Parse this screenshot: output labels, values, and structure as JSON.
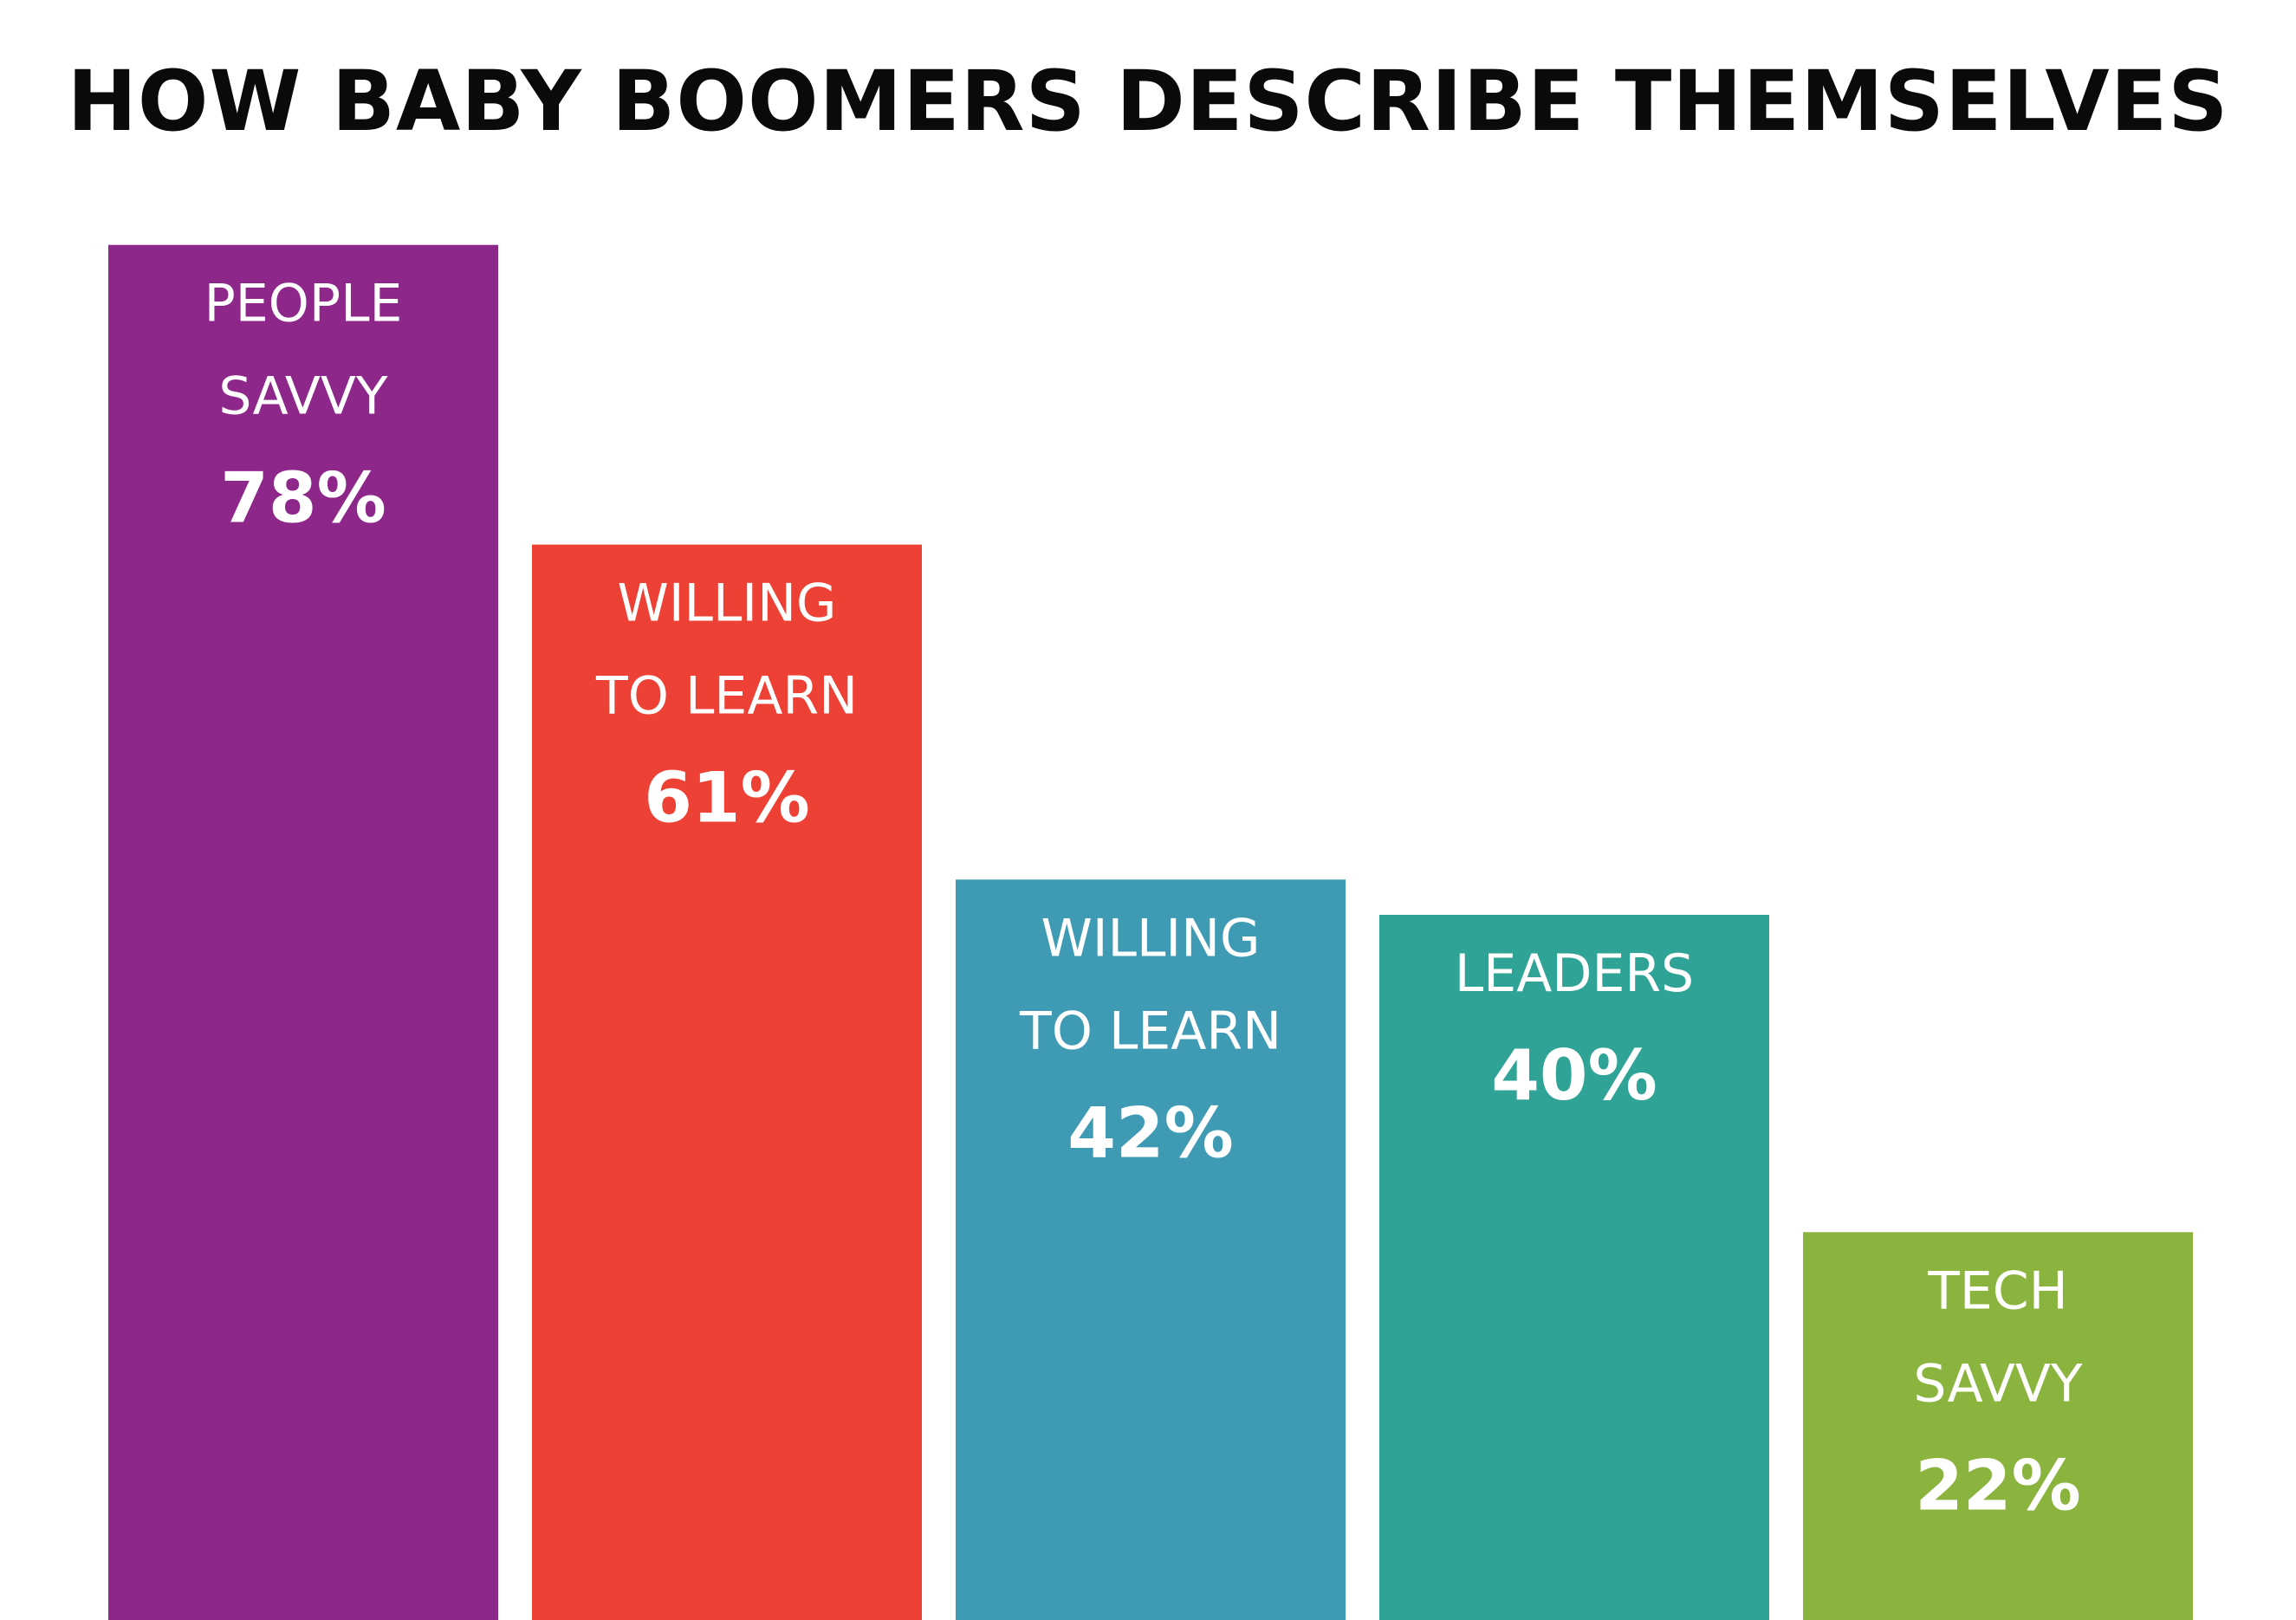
{
  "chart_data": {
    "type": "bar",
    "title": "HOW BABY BOOMERS DESCRIBE THEMSELVES",
    "xlabel": "",
    "ylabel": "",
    "ylim": [
      0,
      100
    ],
    "grid": false,
    "categories": [
      [
        "PEOPLE",
        "SAVVY"
      ],
      [
        "WILLING",
        "TO LEARN"
      ],
      [
        "WILLING",
        "TO LEARN"
      ],
      [
        "LEADERS"
      ],
      [
        "TECH",
        "SAVVY"
      ]
    ],
    "values": [
      78,
      61,
      42,
      40,
      22
    ],
    "data_labels": [
      "78%",
      "61%",
      "42%",
      "40%",
      "22%"
    ],
    "colors": [
      "#8e278a",
      "#ee4136",
      "#3f9bb3",
      "#2fa396",
      "#8bb43f"
    ]
  }
}
